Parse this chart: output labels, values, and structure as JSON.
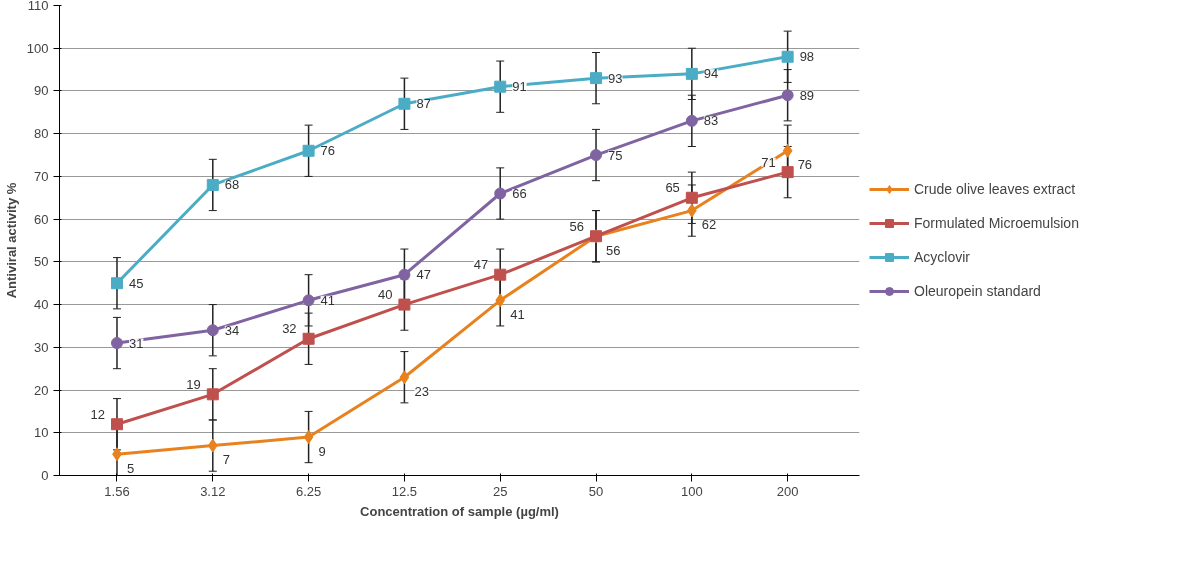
{
  "chart_data": {
    "type": "line",
    "xlabel": "Concentration of sample (µg/ml)",
    "ylabel": "Antiviral activity %",
    "categories": [
      "1.56",
      "3.12",
      "6.25",
      "12.5",
      "25",
      "50",
      "100",
      "200"
    ],
    "series": [
      {
        "name": "Crude olive leaves extract",
        "color": "#e8821e",
        "marker": "diamond",
        "values": [
          5,
          7,
          9,
          23,
          41,
          56,
          62,
          76
        ],
        "errors": [
          6,
          6,
          6,
          6,
          6,
          6,
          6,
          6
        ]
      },
      {
        "name": "Formulated Microemulsion",
        "color": "#c0504d",
        "marker": "square",
        "values": [
          12,
          19,
          32,
          40,
          47,
          56,
          65,
          71
        ],
        "errors": [
          6,
          6,
          6,
          6,
          6,
          6,
          6,
          6
        ]
      },
      {
        "name": "Acyclovir",
        "color": "#4bacc6",
        "marker": "square",
        "values": [
          45,
          68,
          76,
          87,
          91,
          93,
          94,
          98
        ],
        "errors": [
          6,
          6,
          6,
          6,
          6,
          6,
          6,
          6
        ]
      },
      {
        "name": "Oleuropein standard",
        "color": "#8064a2",
        "marker": "circle",
        "values": [
          31,
          34,
          41,
          47,
          66,
          75,
          83,
          89
        ],
        "errors": [
          6,
          6,
          6,
          6,
          6,
          6,
          6,
          6
        ]
      }
    ],
    "ylim": [
      0,
      110
    ],
    "yticks": [
      0,
      10,
      20,
      30,
      40,
      50,
      60,
      70,
      80,
      90,
      100,
      110
    ],
    "grid": "y",
    "legend": "right",
    "data_labels": true
  }
}
